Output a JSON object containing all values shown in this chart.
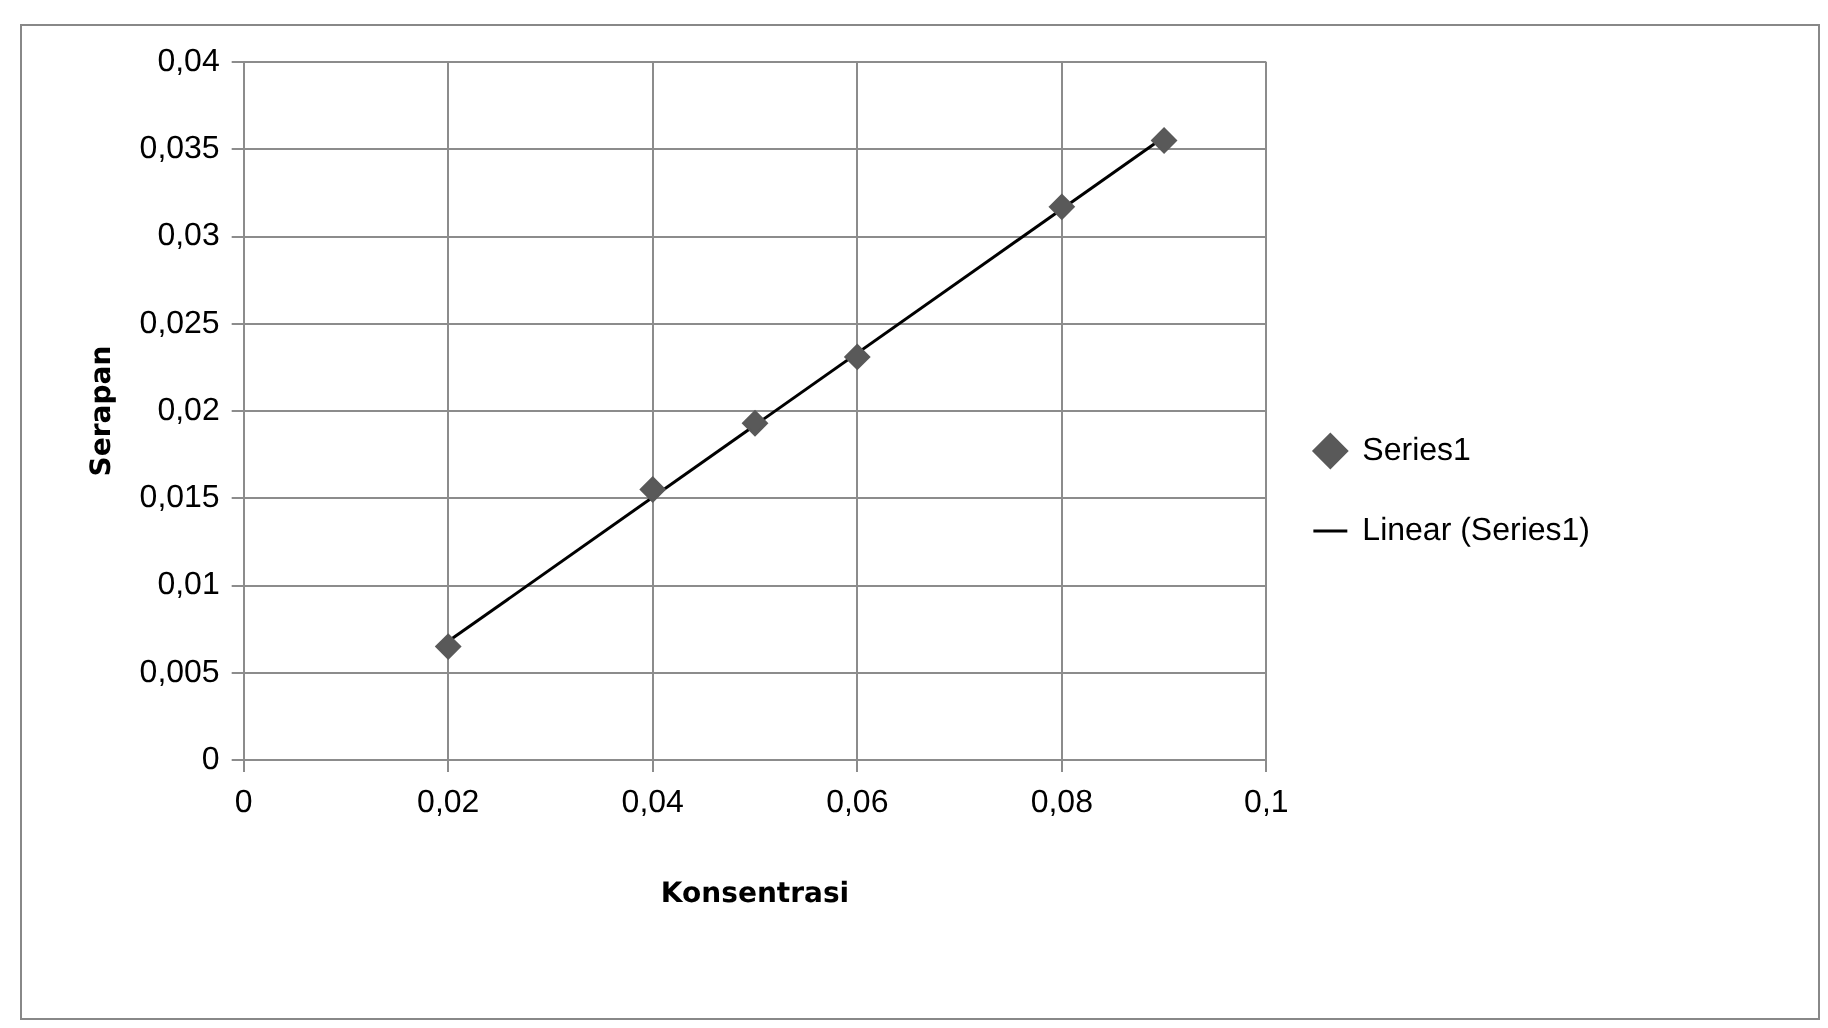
{
  "chart_data": {
    "type": "scatter",
    "xlabel": "Konsentrasi",
    "ylabel": "Serapan",
    "series": [
      {
        "name": "Series1",
        "color": "#595959",
        "marker": "diamond",
        "x": [
          0.02,
          0.04,
          0.05,
          0.06,
          0.08,
          0.09
        ],
        "values": [
          0.0065,
          0.0155,
          0.0193,
          0.0231,
          0.0317,
          0.0355
        ]
      },
      {
        "name": "Linear (Series1)",
        "type": "line",
        "color": "#000000",
        "marker": "none",
        "line_style": "solid",
        "x": [
          0.02,
          0.09
        ],
        "values": [
          0.0068,
          0.0357
        ]
      }
    ],
    "xlim": [
      0,
      0.1
    ],
    "xticks": [
      0,
      {
        "value": 0.02,
        "label": "0,02"
      },
      {
        "value": 0.04,
        "label": "0,04"
      },
      {
        "value": 0.06,
        "label": "0,06"
      },
      {
        "value": 0.08,
        "label": "0,08"
      },
      {
        "value": 0.1,
        "label": "0,1"
      }
    ],
    "ylim": [
      0,
      0.04
    ],
    "yticks": [
      0,
      {
        "value": 0.005,
        "label": "0,005"
      },
      {
        "value": 0.01,
        "label": "0,01"
      },
      {
        "value": 0.015,
        "label": "0,015"
      },
      {
        "value": 0.02,
        "label": "0,02"
      },
      {
        "value": 0.025,
        "label": "0,025"
      },
      {
        "value": 0.03,
        "label": "0,03"
      },
      {
        "value": 0.035,
        "label": "0,035"
      },
      {
        "value": 0.04,
        "label": "0,04"
      }
    ],
    "grid": true,
    "legend": "right"
  }
}
